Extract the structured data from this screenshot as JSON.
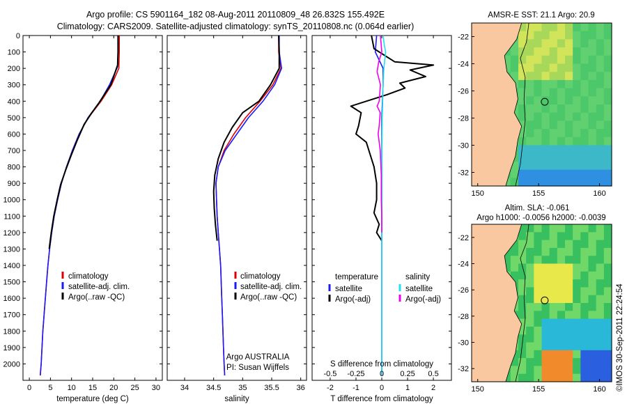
{
  "figure": {
    "title_line1": "Argo profile: CS 5901164_182 08-Aug-2011 20110809_48 26.832S 155.492E",
    "title_line2": "Climatology: CARS2009. Satellite-adjusted climatology: synTS_20110808.nc (0.064d earlier)",
    "footer_credit": "Argo AUSTRALIA",
    "footer_pi": "PI: Susan Wijffels",
    "timestamp": "©IMOS 30-Sep-2011 22:24:54"
  },
  "colors": {
    "climatology": "#dd0000",
    "satellite": "#1a1aff",
    "argo": "#000000",
    "s_satellite": "#22e0f0",
    "s_argo": "#ee00ee",
    "land": "#f9c8a0"
  },
  "chart_data": [
    {
      "id": "temperature",
      "type": "line",
      "xlabel": "temperature (deg C)",
      "ylabel": "",
      "xlim": [
        -1.5,
        31.5
      ],
      "ylim": [
        2100,
        0
      ],
      "xticks": [
        0,
        5,
        10,
        15,
        20,
        25,
        30
      ],
      "yticks": [
        0,
        100,
        200,
        300,
        400,
        500,
        600,
        700,
        800,
        900,
        1000,
        1100,
        1200,
        1300,
        1400,
        1500,
        1600,
        1700,
        1800,
        1900,
        2000
      ],
      "legend": [
        "climatology",
        "satellite-adj. clim.",
        "Argo(..raw -QC)"
      ],
      "series": [
        {
          "name": "climatology",
          "color_key": "climatology",
          "points": [
            [
              21.3,
              0
            ],
            [
              21.3,
              100
            ],
            [
              21.2,
              200
            ],
            [
              19.5,
              300
            ],
            [
              17.0,
              400
            ],
            [
              14.0,
              500
            ],
            [
              11.8,
              600
            ],
            [
              10.2,
              700
            ],
            [
              8.8,
              800
            ],
            [
              7.6,
              900
            ],
            [
              6.7,
              1000
            ],
            [
              5.9,
              1100
            ],
            [
              5.3,
              1200
            ],
            [
              4.8,
              1300
            ],
            [
              4.4,
              1400
            ],
            [
              4.1,
              1500
            ],
            [
              3.8,
              1600
            ],
            [
              3.5,
              1700
            ],
            [
              3.2,
              1800
            ],
            [
              3.0,
              1900
            ],
            [
              2.8,
              2000
            ],
            [
              2.6,
              2070
            ]
          ]
        },
        {
          "name": "satellite",
          "color_key": "satellite",
          "points": [
            [
              21.0,
              0
            ],
            [
              21.0,
              100
            ],
            [
              20.9,
              190
            ],
            [
              19.0,
              300
            ],
            [
              16.8,
              400
            ],
            [
              13.9,
              500
            ],
            [
              11.8,
              600
            ],
            [
              10.2,
              700
            ],
            [
              8.8,
              800
            ],
            [
              7.6,
              900
            ],
            [
              6.7,
              1000
            ],
            [
              5.9,
              1100
            ],
            [
              5.3,
              1200
            ],
            [
              4.8,
              1300
            ],
            [
              4.4,
              1400
            ],
            [
              4.1,
              1500
            ],
            [
              3.8,
              1600
            ],
            [
              3.5,
              1700
            ],
            [
              3.2,
              1800
            ],
            [
              3.0,
              1900
            ],
            [
              2.8,
              2000
            ],
            [
              2.6,
              2070
            ]
          ]
        },
        {
          "name": "Argo",
          "color_key": "argo",
          "points": [
            [
              21.0,
              0
            ],
            [
              21.0,
              100
            ],
            [
              20.9,
              180
            ],
            [
              19.3,
              300
            ],
            [
              16.5,
              410
            ],
            [
              14.8,
              470
            ],
            [
              13.0,
              540
            ],
            [
              11.3,
              640
            ],
            [
              9.9,
              730
            ],
            [
              8.6,
              820
            ],
            [
              7.4,
              910
            ],
            [
              6.6,
              1000
            ],
            [
              5.8,
              1100
            ],
            [
              5.2,
              1200
            ],
            [
              4.7,
              1300
            ]
          ]
        }
      ]
    },
    {
      "id": "salinity",
      "type": "line",
      "xlabel": "salinity",
      "ylabel": "",
      "xlim": [
        33.7,
        36.1
      ],
      "ylim": [
        2100,
        0
      ],
      "xticks": [
        34,
        34.5,
        35,
        35.5,
        36
      ],
      "yticks": [
        0,
        100,
        200,
        300,
        400,
        500,
        600,
        700,
        800,
        900,
        1000,
        1100,
        1200,
        1300,
        1400,
        1500,
        1600,
        1700,
        1800,
        1900,
        2000
      ],
      "legend": [
        "climatology",
        "satellite-adj. clim.",
        "Argo(..raw -QC)"
      ],
      "series": [
        {
          "name": "climatology",
          "color_key": "climatology",
          "points": [
            [
              35.62,
              0
            ],
            [
              35.62,
              100
            ],
            [
              35.66,
              200
            ],
            [
              35.52,
              300
            ],
            [
              35.3,
              400
            ],
            [
              35.05,
              500
            ],
            [
              34.85,
              600
            ],
            [
              34.68,
              700
            ],
            [
              34.58,
              800
            ],
            [
              34.54,
              900
            ],
            [
              34.55,
              1000
            ],
            [
              34.56,
              1100
            ],
            [
              34.58,
              1200
            ],
            [
              34.6,
              1300
            ],
            [
              34.62,
              1400
            ],
            [
              34.63,
              1500
            ],
            [
              34.64,
              1600
            ],
            [
              34.65,
              1700
            ],
            [
              34.66,
              1800
            ],
            [
              34.67,
              1900
            ],
            [
              34.68,
              2000
            ],
            [
              34.69,
              2070
            ]
          ]
        },
        {
          "name": "satellite",
          "color_key": "satellite",
          "points": [
            [
              35.63,
              0
            ],
            [
              35.63,
              100
            ],
            [
              35.67,
              200
            ],
            [
              35.55,
              300
            ],
            [
              35.35,
              400
            ],
            [
              35.1,
              500
            ],
            [
              34.9,
              600
            ],
            [
              34.7,
              700
            ],
            [
              34.58,
              800
            ],
            [
              34.54,
              900
            ],
            [
              34.55,
              1000
            ],
            [
              34.56,
              1100
            ],
            [
              34.58,
              1200
            ],
            [
              34.6,
              1300
            ],
            [
              34.62,
              1400
            ],
            [
              34.63,
              1500
            ],
            [
              34.64,
              1600
            ],
            [
              34.65,
              1700
            ],
            [
              34.66,
              1800
            ],
            [
              34.67,
              1900
            ],
            [
              34.68,
              2000
            ],
            [
              34.69,
              2070
            ]
          ]
        },
        {
          "name": "Argo",
          "color_key": "argo",
          "points": [
            [
              35.62,
              0
            ],
            [
              35.63,
              100
            ],
            [
              35.63,
              200
            ],
            [
              35.48,
              300
            ],
            [
              35.28,
              400
            ],
            [
              35.0,
              470
            ],
            [
              34.82,
              560
            ],
            [
              34.68,
              650
            ],
            [
              34.58,
              750
            ],
            [
              34.52,
              850
            ],
            [
              34.5,
              950
            ],
            [
              34.51,
              1050
            ],
            [
              34.53,
              1150
            ],
            [
              34.56,
              1250
            ]
          ]
        }
      ]
    },
    {
      "id": "difference",
      "type": "line",
      "xlabel": "T difference from climatology",
      "xlabel_top": "S difference from climatology",
      "ylabel": "",
      "xlim": [
        -2.7,
        2.7
      ],
      "ylim": [
        2100,
        0
      ],
      "xticks": [
        -2,
        -1,
        0,
        1,
        2
      ],
      "xticks_s": [
        -0.5,
        -0.25,
        0,
        0.25,
        0.5
      ],
      "yticks": [
        0,
        100,
        200,
        300,
        400,
        500,
        600,
        700,
        800,
        900,
        1000,
        1100,
        1200,
        1300,
        1400,
        1500,
        1600,
        1700,
        1800,
        1900,
        2000
      ],
      "legend_t_header": "temperature",
      "legend_s_header": "salinity",
      "legend_t": [
        "satellite",
        "Argo(-adj)"
      ],
      "legend_s": [
        "satellite",
        "Argo(-adj)"
      ],
      "series": [
        {
          "name": "T satellite",
          "color_key": "satellite",
          "points": [
            [
              -0.2,
              0
            ],
            [
              -0.25,
              100
            ],
            [
              0.05,
              200
            ],
            [
              0.05,
              300
            ],
            [
              0.0,
              500
            ],
            [
              0.0,
              700
            ],
            [
              0.0,
              1000
            ],
            [
              0.0,
              1300
            ],
            [
              0.0,
              1600
            ],
            [
              0.0,
              2000
            ],
            [
              0.0,
              2070
            ]
          ]
        },
        {
          "name": "T Argo",
          "color_key": "argo",
          "points": [
            [
              -0.4,
              0
            ],
            [
              -0.3,
              80
            ],
            [
              0.5,
              160
            ],
            [
              2.0,
              180
            ],
            [
              1.1,
              210
            ],
            [
              1.7,
              250
            ],
            [
              0.7,
              290
            ],
            [
              0.9,
              320
            ],
            [
              0.2,
              360
            ],
            [
              -0.6,
              400
            ],
            [
              -1.2,
              430
            ],
            [
              -0.8,
              470
            ],
            [
              -0.9,
              550
            ],
            [
              -1.0,
              600
            ],
            [
              -0.6,
              650
            ],
            [
              -0.5,
              700
            ],
            [
              -0.3,
              800
            ],
            [
              -0.2,
              900
            ],
            [
              -0.2,
              1000
            ],
            [
              -0.3,
              1080
            ],
            [
              -0.1,
              1150
            ],
            [
              -0.2,
              1200
            ],
            [
              0.0,
              1250
            ]
          ]
        },
        {
          "name": "S satellite",
          "color_key": "s_satellite",
          "points": [
            [
              0.05,
              0
            ],
            [
              0.1,
              60
            ],
            [
              0.15,
              100
            ],
            [
              0.08,
              200
            ],
            [
              0.05,
              300
            ],
            [
              0.02,
              500
            ],
            [
              0.0,
              800
            ],
            [
              0.0,
              1200
            ],
            [
              0.0,
              1600
            ],
            [
              0.0,
              2000
            ],
            [
              0.0,
              2070
            ]
          ]
        },
        {
          "name": "S Argo",
          "color_key": "s_argo",
          "points": [
            [
              -0.05,
              0
            ],
            [
              0.0,
              100
            ],
            [
              -0.12,
              160
            ],
            [
              -0.18,
              220
            ],
            [
              -0.05,
              300
            ],
            [
              -0.1,
              400
            ],
            [
              -0.18,
              430
            ],
            [
              -0.06,
              470
            ],
            [
              -0.1,
              550
            ],
            [
              -0.14,
              600
            ],
            [
              -0.06,
              700
            ],
            [
              -0.02,
              850
            ],
            [
              -0.02,
              1000
            ],
            [
              0.0,
              1100
            ],
            [
              0.0,
              1200
            ]
          ]
        }
      ]
    },
    {
      "id": "sst_map",
      "type": "heatmap",
      "title": "AMSR-E SST: 21.1  Argo: 20.9",
      "xlim": [
        149.5,
        161.0
      ],
      "ylim": [
        -33.0,
        -21.0
      ],
      "xticks": [
        150,
        155,
        160
      ],
      "yticks": [
        -22,
        -24,
        -26,
        -28,
        -30,
        -32
      ],
      "marker": [
        155.5,
        -26.8
      ]
    },
    {
      "id": "sla_map",
      "type": "heatmap",
      "title": "Altim. SLA: -0.061",
      "title_line2": "Argo h1000: -0.0056 h2000: -0.0039",
      "xlim": [
        149.5,
        161.0
      ],
      "ylim": [
        -33.0,
        -21.0
      ],
      "xticks": [
        150,
        155,
        160
      ],
      "yticks": [
        -22,
        -24,
        -26,
        -28,
        -30,
        -32
      ],
      "marker": [
        155.5,
        -26.8
      ]
    }
  ]
}
